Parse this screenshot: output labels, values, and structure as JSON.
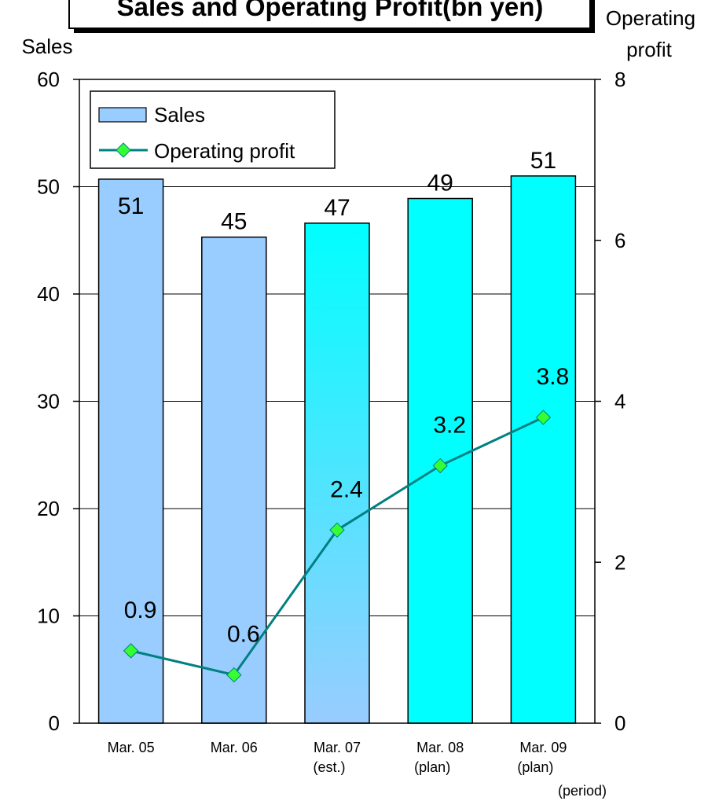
{
  "chart_data": {
    "type": "bar+line",
    "title": "Sales and Operating Profit(bn yen)",
    "categories": [
      [
        "Mar. 05"
      ],
      [
        "Mar. 06"
      ],
      [
        "Mar. 07",
        "(est.)"
      ],
      [
        "Mar. 08",
        "(plan)"
      ],
      [
        "Mar. 09",
        "(plan)"
      ]
    ],
    "x_unit_label": "(period)",
    "left_axis": {
      "label": "Sales",
      "min": 0,
      "max": 60,
      "ticks": [
        0,
        10,
        20,
        30,
        40,
        50,
        60
      ]
    },
    "right_axis": {
      "label_lines": [
        "Operating",
        "profit"
      ],
      "min": 0,
      "max": 8,
      "ticks": [
        0,
        2,
        4,
        6,
        8
      ]
    },
    "series": [
      {
        "name": "Sales",
        "kind": "bar",
        "axis": "left",
        "values": [
          50.7,
          45.3,
          46.6,
          48.9,
          51.0
        ],
        "labels": [
          "51",
          "45",
          "47",
          "49",
          "51"
        ],
        "colors": [
          "#99ccff",
          "#99ccff",
          "gradient",
          "#00ffff",
          "#00ffff"
        ]
      },
      {
        "name": "Operating profit",
        "kind": "line",
        "axis": "right",
        "values": [
          0.9,
          0.6,
          2.4,
          3.2,
          3.8
        ],
        "labels": [
          "0.9",
          "0.6",
          "2.4",
          "3.2",
          "3.8"
        ],
        "color": "#008080",
        "marker_color": "#33ff33"
      }
    ],
    "grid": true,
    "legend_position": "top-left"
  }
}
